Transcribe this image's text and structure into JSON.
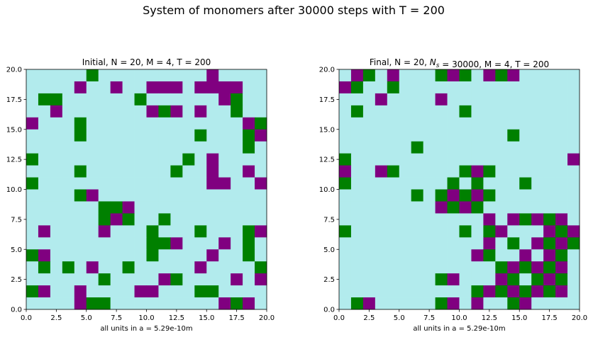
{
  "suptitle": "System of monomers after 30000 steps with T = 200",
  "colors": {
    "empty": "#b2ebed",
    "typeA": "#008000",
    "typeB": "#800080"
  },
  "chart_data": [
    {
      "type": "heatmap",
      "title": "Initial, N = 20, M = 4, T = 200",
      "xlabel": "all units in a = 5.29e-10m",
      "xlim": [
        0,
        20
      ],
      "ylim": [
        0,
        20
      ],
      "xticks": [
        "0.0",
        "2.5",
        "5.0",
        "7.5",
        "10.0",
        "12.5",
        "15.0",
        "17.5",
        "20.0"
      ],
      "yticks": [
        "0.0",
        "2.5",
        "5.0",
        "7.5",
        "10.0",
        "12.5",
        "15.0",
        "17.5",
        "20.0"
      ],
      "value_legend": {
        "0": "empty",
        "1": "typeA",
        "2": "typeB"
      },
      "grid": [
        [
          0,
          0,
          0,
          0,
          0,
          1,
          0,
          0,
          0,
          0,
          0,
          0,
          0,
          0,
          0,
          2,
          0,
          0,
          0,
          0
        ],
        [
          0,
          0,
          0,
          0,
          2,
          0,
          0,
          2,
          0,
          0,
          2,
          2,
          2,
          0,
          2,
          2,
          2,
          2,
          0,
          0
        ],
        [
          0,
          1,
          1,
          0,
          0,
          0,
          0,
          0,
          0,
          1,
          0,
          0,
          0,
          0,
          0,
          0,
          2,
          1,
          0,
          0
        ],
        [
          0,
          0,
          2,
          0,
          0,
          0,
          0,
          0,
          0,
          0,
          2,
          1,
          2,
          0,
          2,
          0,
          0,
          1,
          0,
          0
        ],
        [
          2,
          0,
          0,
          0,
          1,
          0,
          0,
          0,
          0,
          0,
          0,
          0,
          0,
          0,
          0,
          0,
          0,
          0,
          2,
          1
        ],
        [
          0,
          0,
          0,
          0,
          1,
          0,
          0,
          0,
          0,
          0,
          0,
          0,
          0,
          0,
          1,
          0,
          0,
          0,
          1,
          2
        ],
        [
          0,
          0,
          0,
          0,
          0,
          0,
          0,
          0,
          0,
          0,
          0,
          0,
          0,
          0,
          0,
          0,
          0,
          0,
          1,
          0
        ],
        [
          1,
          0,
          0,
          0,
          0,
          0,
          0,
          0,
          0,
          0,
          0,
          0,
          0,
          1,
          0,
          2,
          0,
          0,
          0,
          0
        ],
        [
          0,
          0,
          0,
          0,
          1,
          0,
          0,
          0,
          0,
          0,
          0,
          0,
          1,
          0,
          0,
          2,
          0,
          0,
          2,
          0
        ],
        [
          1,
          0,
          0,
          0,
          0,
          0,
          0,
          0,
          0,
          0,
          0,
          0,
          0,
          0,
          0,
          2,
          2,
          0,
          0,
          2
        ],
        [
          0,
          0,
          0,
          0,
          1,
          2,
          0,
          0,
          0,
          0,
          0,
          0,
          0,
          0,
          0,
          0,
          0,
          0,
          0,
          0
        ],
        [
          0,
          0,
          0,
          0,
          0,
          0,
          1,
          1,
          2,
          0,
          0,
          0,
          0,
          0,
          0,
          0,
          0,
          0,
          0,
          0
        ],
        [
          0,
          0,
          0,
          0,
          0,
          0,
          1,
          2,
          1,
          0,
          0,
          1,
          0,
          0,
          0,
          0,
          0,
          0,
          0,
          0
        ],
        [
          0,
          2,
          0,
          0,
          0,
          0,
          2,
          0,
          0,
          0,
          1,
          0,
          0,
          0,
          1,
          0,
          0,
          0,
          1,
          2
        ],
        [
          0,
          0,
          0,
          0,
          0,
          0,
          0,
          0,
          0,
          0,
          1,
          1,
          2,
          0,
          0,
          0,
          2,
          0,
          1,
          0
        ],
        [
          1,
          2,
          0,
          0,
          0,
          0,
          0,
          0,
          0,
          0,
          1,
          0,
          0,
          0,
          0,
          2,
          0,
          0,
          1,
          0
        ],
        [
          0,
          1,
          0,
          1,
          0,
          2,
          0,
          0,
          1,
          0,
          0,
          0,
          0,
          0,
          2,
          0,
          0,
          0,
          0,
          1
        ],
        [
          0,
          0,
          0,
          0,
          0,
          0,
          1,
          0,
          0,
          0,
          0,
          2,
          1,
          0,
          0,
          0,
          0,
          2,
          0,
          2
        ],
        [
          1,
          2,
          0,
          0,
          2,
          0,
          0,
          0,
          0,
          2,
          2,
          0,
          0,
          0,
          1,
          1,
          0,
          0,
          0,
          0
        ],
        [
          0,
          0,
          0,
          0,
          2,
          1,
          1,
          0,
          0,
          0,
          0,
          0,
          0,
          0,
          0,
          0,
          2,
          1,
          2,
          0
        ]
      ]
    },
    {
      "type": "heatmap",
      "title": "Final, N = 20, N_s = 30000, M = 4, T = 200",
      "xlabel": "all units in a = 5.29e-10m",
      "xlim": [
        0,
        20
      ],
      "ylim": [
        0,
        20
      ],
      "xticks": [
        "0.0",
        "2.5",
        "5.0",
        "7.5",
        "10.0",
        "12.5",
        "15.0",
        "17.5",
        "20.0"
      ],
      "yticks": [
        "0.0",
        "2.5",
        "5.0",
        "7.5",
        "10.0",
        "12.5",
        "15.0",
        "17.5",
        "20.0"
      ],
      "value_legend": {
        "0": "empty",
        "1": "typeA",
        "2": "typeB"
      },
      "grid": [
        [
          0,
          2,
          1,
          0,
          2,
          0,
          0,
          0,
          1,
          2,
          1,
          0,
          2,
          1,
          2,
          0,
          0,
          0,
          0,
          0
        ],
        [
          2,
          1,
          0,
          0,
          1,
          0,
          0,
          0,
          0,
          0,
          0,
          0,
          0,
          0,
          0,
          0,
          0,
          0,
          0,
          0
        ],
        [
          0,
          0,
          0,
          2,
          0,
          0,
          0,
          0,
          2,
          0,
          0,
          0,
          0,
          0,
          0,
          0,
          0,
          0,
          0,
          0
        ],
        [
          0,
          1,
          0,
          0,
          0,
          0,
          0,
          0,
          0,
          0,
          1,
          0,
          0,
          0,
          0,
          0,
          0,
          0,
          0,
          0
        ],
        [
          0,
          0,
          0,
          0,
          0,
          0,
          0,
          0,
          0,
          0,
          0,
          0,
          0,
          0,
          0,
          0,
          0,
          0,
          0,
          0
        ],
        [
          0,
          0,
          0,
          0,
          0,
          0,
          0,
          0,
          0,
          0,
          0,
          0,
          0,
          0,
          1,
          0,
          0,
          0,
          0,
          0
        ],
        [
          0,
          0,
          0,
          0,
          0,
          0,
          1,
          0,
          0,
          0,
          0,
          0,
          0,
          0,
          0,
          0,
          0,
          0,
          0,
          0
        ],
        [
          1,
          0,
          0,
          0,
          0,
          0,
          0,
          0,
          0,
          0,
          0,
          0,
          0,
          0,
          0,
          0,
          0,
          0,
          0,
          2
        ],
        [
          2,
          0,
          0,
          2,
          1,
          0,
          0,
          0,
          0,
          0,
          1,
          2,
          1,
          0,
          0,
          0,
          0,
          0,
          0,
          0
        ],
        [
          1,
          0,
          0,
          0,
          0,
          0,
          0,
          0,
          0,
          1,
          0,
          1,
          0,
          0,
          0,
          1,
          0,
          0,
          0,
          0
        ],
        [
          0,
          0,
          0,
          0,
          0,
          0,
          1,
          0,
          1,
          2,
          1,
          2,
          1,
          0,
          0,
          0,
          0,
          0,
          0,
          0
        ],
        [
          0,
          0,
          0,
          0,
          0,
          0,
          0,
          0,
          2,
          1,
          2,
          1,
          0,
          0,
          0,
          0,
          0,
          0,
          0,
          0
        ],
        [
          0,
          0,
          0,
          0,
          0,
          0,
          0,
          0,
          0,
          0,
          0,
          0,
          2,
          0,
          2,
          1,
          2,
          1,
          2,
          0
        ],
        [
          1,
          0,
          0,
          0,
          0,
          0,
          0,
          0,
          0,
          0,
          1,
          0,
          1,
          2,
          0,
          0,
          0,
          2,
          1,
          2
        ],
        [
          0,
          0,
          0,
          0,
          0,
          0,
          0,
          0,
          0,
          0,
          0,
          0,
          2,
          0,
          1,
          0,
          2,
          1,
          2,
          1
        ],
        [
          0,
          0,
          0,
          0,
          0,
          0,
          0,
          0,
          0,
          0,
          0,
          2,
          1,
          0,
          0,
          2,
          0,
          2,
          1,
          0
        ],
        [
          0,
          0,
          0,
          0,
          0,
          0,
          0,
          0,
          0,
          0,
          0,
          0,
          0,
          1,
          2,
          1,
          2,
          1,
          2,
          0
        ],
        [
          0,
          0,
          0,
          0,
          0,
          0,
          0,
          0,
          1,
          2,
          0,
          0,
          0,
          2,
          1,
          0,
          1,
          2,
          1,
          0
        ],
        [
          0,
          0,
          0,
          0,
          0,
          0,
          0,
          0,
          0,
          0,
          0,
          1,
          2,
          1,
          2,
          1,
          2,
          1,
          2,
          0
        ],
        [
          0,
          1,
          2,
          0,
          0,
          0,
          0,
          0,
          1,
          2,
          0,
          2,
          0,
          0,
          1,
          2,
          0,
          0,
          0,
          0
        ]
      ]
    }
  ]
}
